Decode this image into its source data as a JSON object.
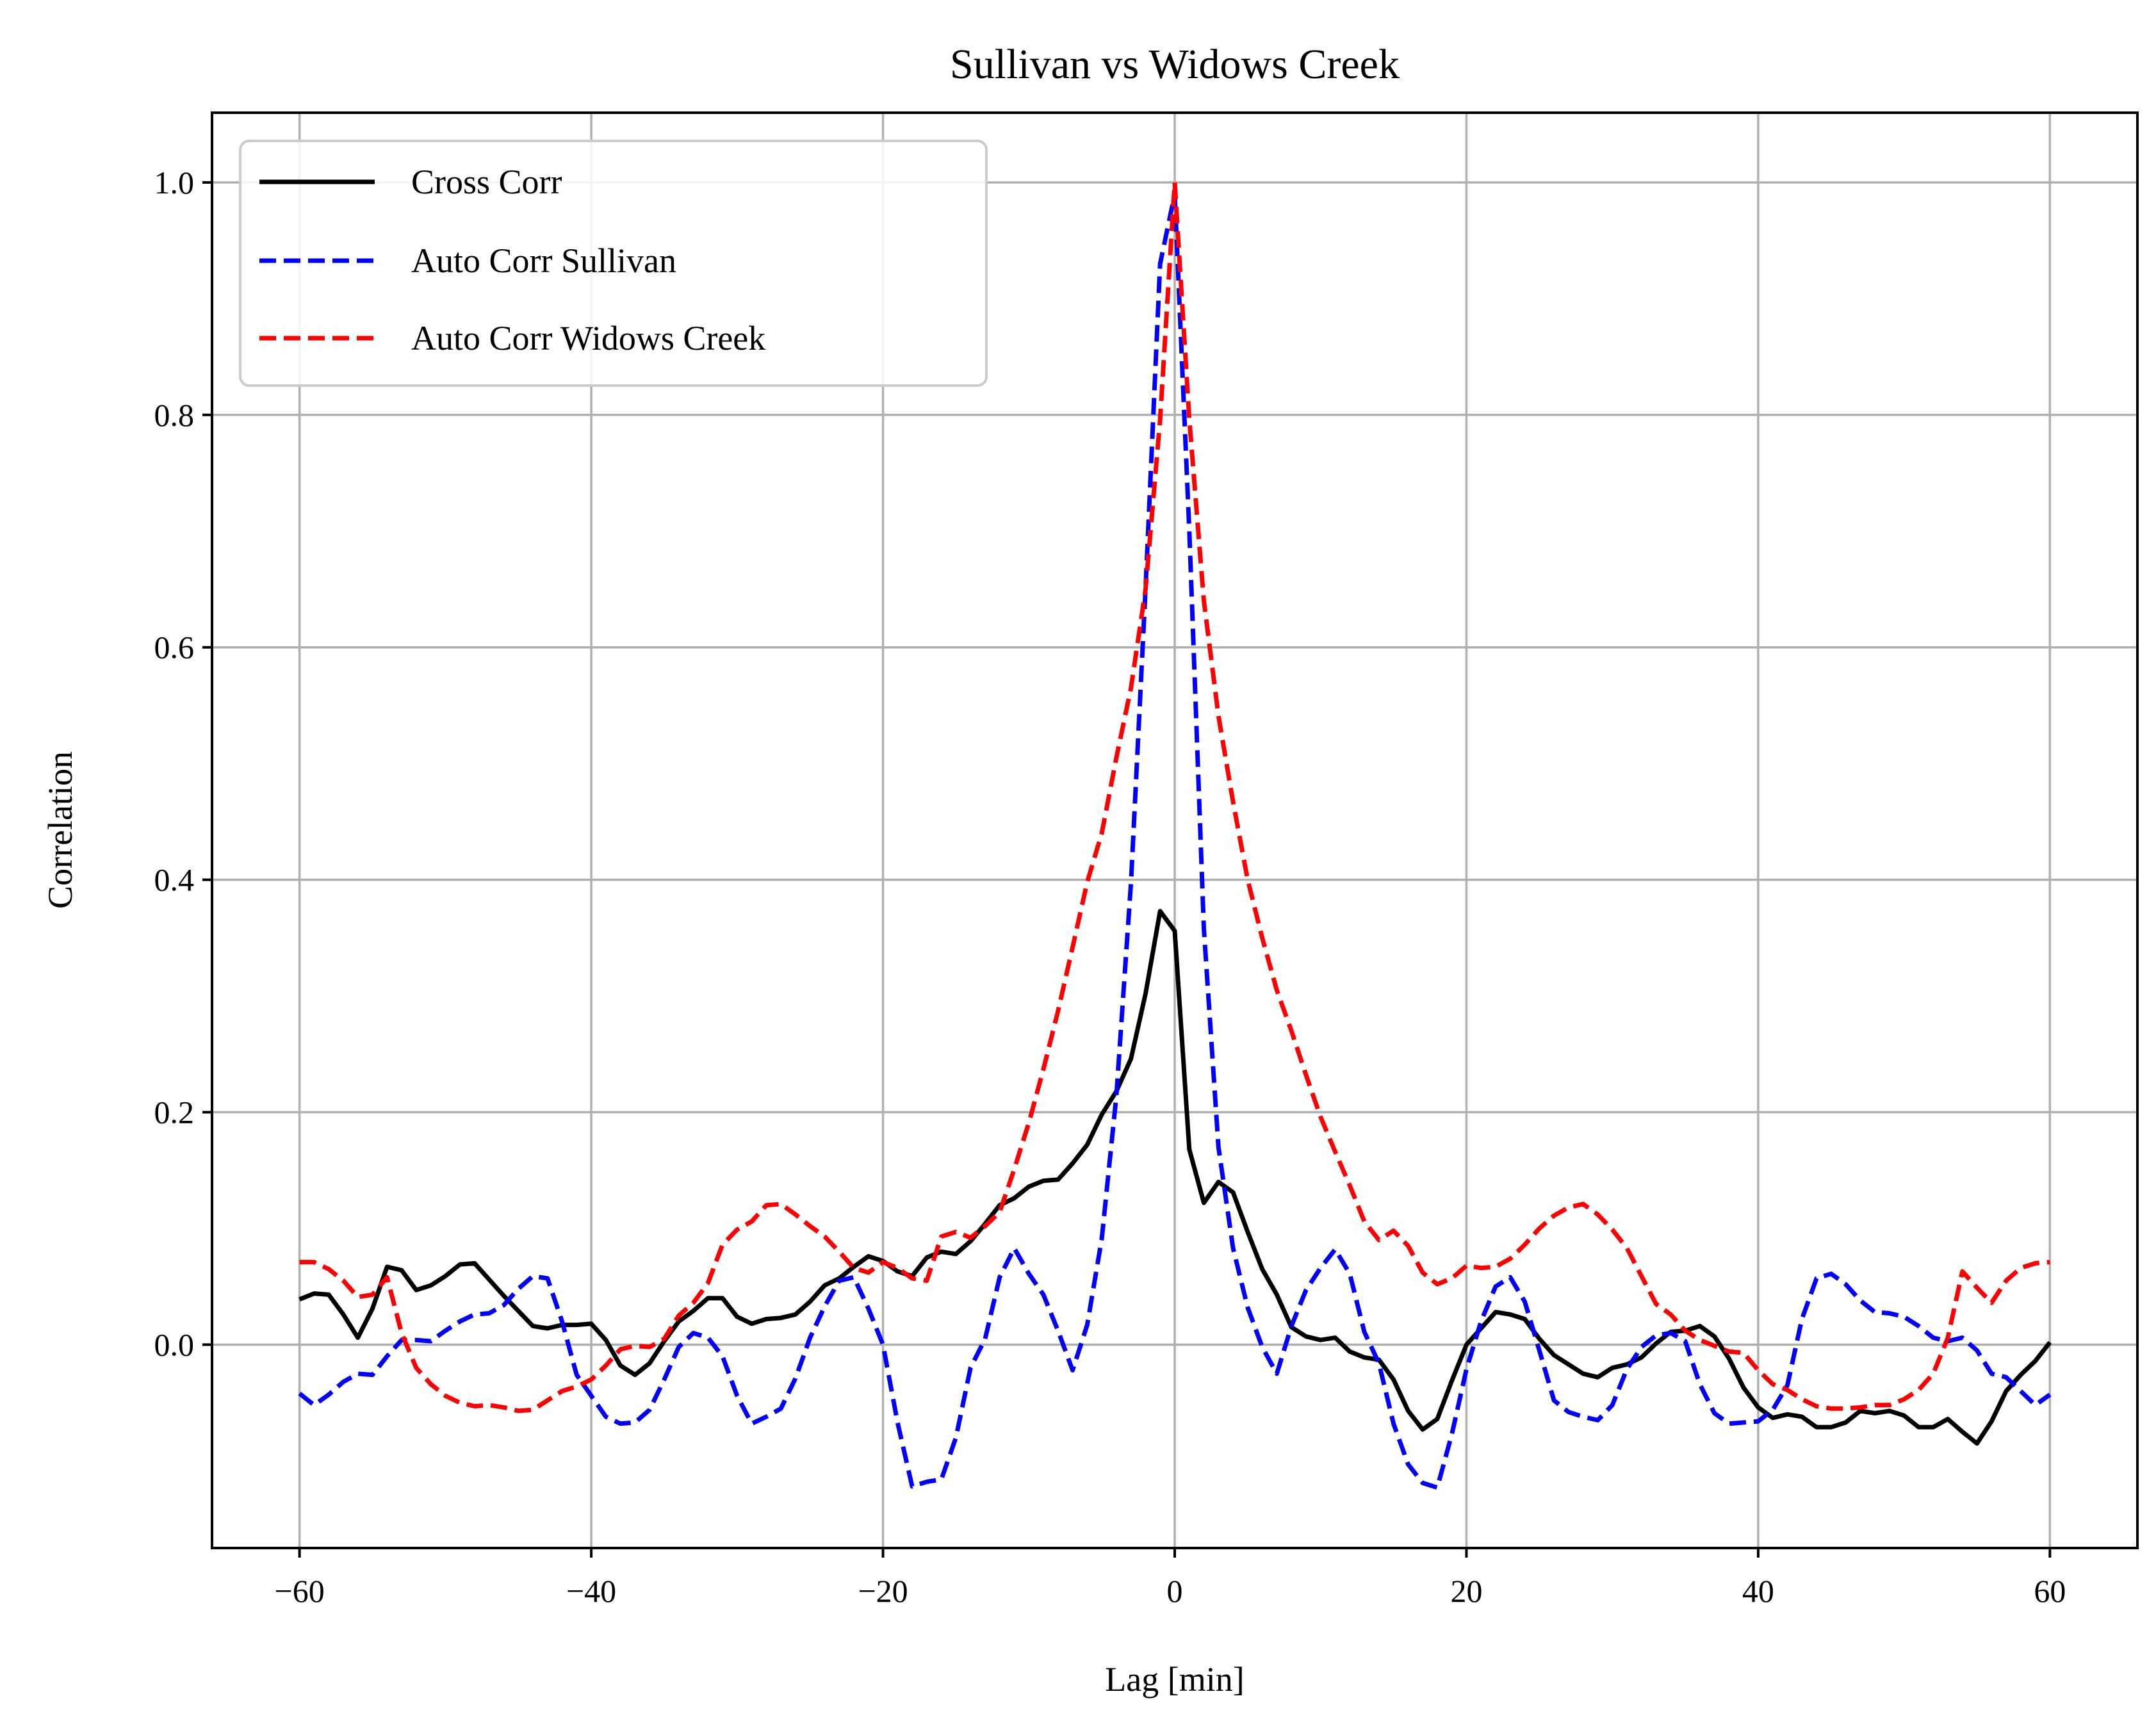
{
  "chart_data": {
    "type": "line",
    "title": "Sullivan vs Widows Creek",
    "xlabel": "Lag [min]",
    "ylabel": "Correlation",
    "xlim": [
      -66,
      66
    ],
    "ylim": [
      -0.175,
      1.06
    ],
    "xticks": [
      -60,
      -40,
      -20,
      0,
      20,
      40,
      60
    ],
    "xtick_labels": [
      "−60",
      "−40",
      "−20",
      "0",
      "20",
      "40",
      "60"
    ],
    "yticks": [
      0.0,
      0.2,
      0.4,
      0.6,
      0.8,
      1.0
    ],
    "ytick_labels": [
      "0.0",
      "0.2",
      "0.4",
      "0.6",
      "0.8",
      "1.0"
    ],
    "grid": true,
    "legend_position": "upper left",
    "x": [
      -60,
      -59,
      -58,
      -57,
      -56,
      -55,
      -54,
      -53,
      -52,
      -51,
      -50,
      -49,
      -48,
      -47,
      -46,
      -45,
      -44,
      -43,
      -42,
      -41,
      -40,
      -39,
      -38,
      -37,
      -36,
      -35,
      -34,
      -33,
      -32,
      -31,
      -30,
      -29,
      -28,
      -27,
      -26,
      -25,
      -24,
      -23,
      -22,
      -21,
      -20,
      -19,
      -18,
      -17,
      -16,
      -15,
      -14,
      -13,
      -12,
      -11,
      -10,
      -9,
      -8,
      -7,
      -6,
      -5,
      -4,
      -3,
      -2,
      -1,
      0,
      1,
      2,
      3,
      4,
      5,
      6,
      7,
      8,
      9,
      10,
      11,
      12,
      13,
      14,
      15,
      16,
      17,
      18,
      19,
      20,
      21,
      22,
      23,
      24,
      25,
      26,
      27,
      28,
      29,
      30,
      31,
      32,
      33,
      34,
      35,
      36,
      37,
      38,
      39,
      40,
      41,
      42,
      43,
      44,
      45,
      46,
      47,
      48,
      49,
      50,
      51,
      52,
      53,
      54,
      55,
      56,
      57,
      58,
      59,
      60
    ],
    "series": [
      {
        "name": "Cross Corr",
        "color": "#000000",
        "dashed": false,
        "values": [
          0.039,
          0.044,
          0.043,
          0.026,
          0.006,
          0.031,
          0.067,
          0.064,
          0.047,
          0.051,
          0.059,
          0.069,
          0.07,
          0.056,
          0.042,
          0.029,
          0.016,
          0.014,
          0.017,
          0.017,
          0.018,
          0.004,
          -0.018,
          -0.026,
          -0.016,
          0.003,
          0.02,
          0.029,
          0.04,
          0.04,
          0.024,
          0.018,
          0.022,
          0.023,
          0.026,
          0.037,
          0.051,
          0.057,
          0.067,
          0.076,
          0.072,
          0.063,
          0.059,
          0.075,
          0.08,
          0.078,
          0.089,
          0.104,
          0.12,
          0.126,
          0.136,
          0.141,
          0.142,
          0.156,
          0.172,
          0.198,
          0.218,
          0.246,
          0.302,
          0.373,
          0.356,
          0.168,
          0.122,
          0.14,
          0.131,
          0.097,
          0.065,
          0.043,
          0.015,
          0.007,
          0.004,
          0.006,
          -0.006,
          -0.011,
          -0.013,
          -0.03,
          -0.057,
          -0.073,
          -0.064,
          -0.031,
          0.0,
          0.014,
          0.028,
          0.026,
          0.022,
          0.005,
          -0.009,
          -0.017,
          -0.025,
          -0.028,
          -0.02,
          -0.017,
          -0.011,
          0.001,
          0.011,
          0.012,
          0.016,
          0.007,
          -0.012,
          -0.037,
          -0.054,
          -0.063,
          -0.06,
          -0.062,
          -0.071,
          -0.071,
          -0.067,
          -0.057,
          -0.059,
          -0.057,
          -0.061,
          -0.071,
          -0.071,
          -0.064,
          -0.075,
          -0.085,
          -0.066,
          -0.04,
          -0.026,
          -0.014,
          0.002
        ]
      },
      {
        "name": "Auto Corr Sullivan",
        "color": "#0000ff",
        "dashed": true,
        "values": [
          -0.042,
          -0.052,
          -0.043,
          -0.032,
          -0.025,
          -0.026,
          -0.01,
          0.004,
          0.004,
          0.003,
          0.012,
          0.02,
          0.026,
          0.027,
          0.034,
          0.048,
          0.059,
          0.057,
          0.02,
          -0.026,
          -0.044,
          -0.062,
          -0.068,
          -0.067,
          -0.056,
          -0.03,
          -0.002,
          0.01,
          0.006,
          -0.01,
          -0.044,
          -0.068,
          -0.062,
          -0.055,
          -0.029,
          0.006,
          0.033,
          0.055,
          0.058,
          0.031,
          0.0,
          -0.067,
          -0.122,
          -0.118,
          -0.116,
          -0.08,
          -0.02,
          0.005,
          0.058,
          0.083,
          0.061,
          0.043,
          0.012,
          -0.022,
          0.017,
          0.091,
          0.214,
          0.397,
          0.651,
          0.93,
          0.99,
          0.7,
          0.358,
          0.17,
          0.083,
          0.032,
          -0.002,
          -0.025,
          0.016,
          0.047,
          0.066,
          0.082,
          0.061,
          0.011,
          -0.016,
          -0.068,
          -0.103,
          -0.119,
          -0.123,
          -0.077,
          -0.021,
          0.02,
          0.05,
          0.058,
          0.037,
          -0.005,
          -0.048,
          -0.058,
          -0.062,
          -0.065,
          -0.052,
          -0.021,
          -0.002,
          0.008,
          0.01,
          0.003,
          -0.034,
          -0.059,
          -0.068,
          -0.067,
          -0.066,
          -0.056,
          -0.035,
          0.022,
          0.057,
          0.061,
          0.052,
          0.038,
          0.028,
          0.027,
          0.024,
          0.016,
          0.006,
          0.003,
          0.006,
          -0.005,
          -0.025,
          -0.028,
          -0.04,
          -0.052,
          -0.043
        ]
      },
      {
        "name": "Auto Corr Widows Creek",
        "color": "#ff0000",
        "dashed": true,
        "values": [
          0.071,
          0.071,
          0.065,
          0.055,
          0.041,
          0.043,
          0.058,
          0.01,
          -0.02,
          -0.034,
          -0.044,
          -0.05,
          -0.053,
          -0.052,
          -0.054,
          -0.057,
          -0.056,
          -0.048,
          -0.04,
          -0.036,
          -0.03,
          -0.018,
          -0.004,
          -0.001,
          -0.002,
          0.005,
          0.025,
          0.036,
          0.053,
          0.086,
          0.099,
          0.106,
          0.12,
          0.121,
          0.112,
          0.102,
          0.093,
          0.08,
          0.066,
          0.062,
          0.071,
          0.066,
          0.057,
          0.055,
          0.093,
          0.097,
          0.092,
          0.102,
          0.114,
          0.151,
          0.191,
          0.237,
          0.287,
          0.342,
          0.398,
          0.44,
          0.505,
          0.565,
          0.65,
          0.796,
          1.0,
          0.796,
          0.64,
          0.541,
          0.467,
          0.4,
          0.35,
          0.305,
          0.27,
          0.232,
          0.196,
          0.166,
          0.137,
          0.106,
          0.09,
          0.098,
          0.085,
          0.062,
          0.052,
          0.057,
          0.068,
          0.066,
          0.067,
          0.074,
          0.086,
          0.1,
          0.111,
          0.118,
          0.121,
          0.112,
          0.099,
          0.083,
          0.059,
          0.035,
          0.026,
          0.012,
          0.004,
          -0.001,
          -0.006,
          -0.007,
          -0.022,
          -0.034,
          -0.039,
          -0.047,
          -0.053,
          -0.055,
          -0.055,
          -0.054,
          -0.052,
          -0.052,
          -0.047,
          -0.039,
          -0.025,
          0.006,
          0.063,
          0.049,
          0.036,
          0.055,
          0.066,
          0.07,
          0.071
        ]
      }
    ]
  }
}
